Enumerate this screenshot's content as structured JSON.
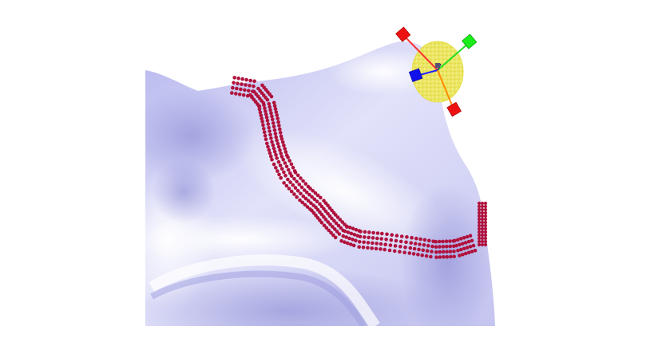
{
  "viewport": {
    "background": "#ffffff"
  },
  "surface": {
    "name": "mesh-surface",
    "base_color": "#c8c8f0",
    "shade_color": "#8f8fd8",
    "highlight_color": "#f4f4ff"
  },
  "point_cloud": {
    "name": "selection-dots",
    "color": "#b0123c",
    "rows": 4
  },
  "gizmo": {
    "sphere_color": "#f3ef6a",
    "axes": [
      {
        "name": "x-axis",
        "color": "#ff0000"
      },
      {
        "name": "y-axis",
        "color": "#00dd00"
      },
      {
        "name": "z-axis",
        "color": "#0000ff"
      },
      {
        "name": "orange-axis",
        "color": "#ff8800"
      }
    ]
  }
}
